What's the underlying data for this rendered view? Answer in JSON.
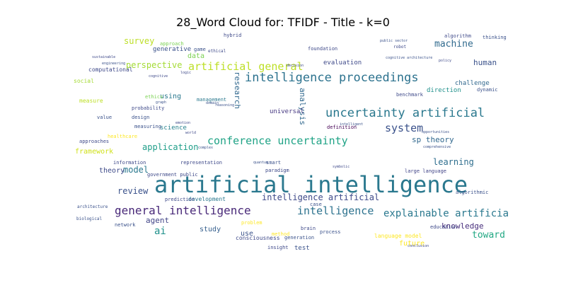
{
  "chart_data": {
    "type": "wordcloud",
    "title": "28_Word Cloud for: TFIDF - Title - k=0",
    "background": "#ffffff",
    "words": [
      {
        "text": "artificial intelligence",
        "color": "#2a788e"
      },
      {
        "text": "intelligence proceedings",
        "color": "#2c728e"
      },
      {
        "text": "uncertainty artificial",
        "color": "#2a788e"
      },
      {
        "text": "conference uncertainty",
        "color": "#20a386"
      },
      {
        "text": "general intelligence",
        "color": "#482878"
      },
      {
        "text": "artificial general",
        "color": "#bddf26"
      },
      {
        "text": "intelligence",
        "color": "#2c728e"
      },
      {
        "text": "explainable artificial",
        "color": "#2a788e"
      },
      {
        "text": "system",
        "color": "#3b528b"
      },
      {
        "text": "intelligence artificial",
        "color": "#3e4989"
      },
      {
        "text": "machine",
        "color": "#306a8e"
      },
      {
        "text": "application",
        "color": "#1f9e89"
      },
      {
        "text": "perspective",
        "color": "#a5db36"
      },
      {
        "text": "survey",
        "color": "#bddf26"
      },
      {
        "text": "research",
        "color": "#31688e"
      },
      {
        "text": "learning",
        "color": "#2e6e8e"
      },
      {
        "text": "review",
        "color": "#3b528b"
      },
      {
        "text": "ai",
        "color": "#21918c"
      },
      {
        "text": "toward",
        "color": "#22a884"
      },
      {
        "text": "knowledge",
        "color": "#472d7b"
      },
      {
        "text": "human",
        "color": "#3b528b"
      },
      {
        "text": "sp theory",
        "color": "#31688e"
      },
      {
        "text": "model",
        "color": "#2a788e"
      },
      {
        "text": "agent",
        "color": "#414487"
      },
      {
        "text": "framework",
        "color": "#d0e11c"
      },
      {
        "text": "analysis",
        "color": "#31688e"
      },
      {
        "text": "theory",
        "color": "#3e4a89"
      },
      {
        "text": "study",
        "color": "#355f8d"
      },
      {
        "text": "use",
        "color": "#3b528b"
      },
      {
        "text": "using",
        "color": "#2a788e"
      },
      {
        "text": "data",
        "color": "#7ad151"
      },
      {
        "text": "generative",
        "color": "#3b528b"
      },
      {
        "text": "science",
        "color": "#26828e"
      },
      {
        "text": "evaluation",
        "color": "#3e4989"
      },
      {
        "text": "computational",
        "color": "#3e4989"
      },
      {
        "text": "universal",
        "color": "#453781"
      },
      {
        "text": "future",
        "color": "#fde725"
      },
      {
        "text": "test",
        "color": "#3b528b"
      },
      {
        "text": "direction",
        "color": "#21918c"
      },
      {
        "text": "challenge",
        "color": "#31688e"
      },
      {
        "text": "development",
        "color": "#2a788e"
      },
      {
        "text": "consciousness",
        "color": "#3e4989"
      },
      {
        "text": "language model",
        "color": "#fde725"
      },
      {
        "text": "large language",
        "color": "#414487"
      },
      {
        "text": "game",
        "color": "#3b528b"
      },
      {
        "text": "foundation",
        "color": "#3e4989"
      },
      {
        "text": "approach",
        "color": "#7ad151"
      },
      {
        "text": "information",
        "color": "#3e4989"
      },
      {
        "text": "measuring",
        "color": "#3b528b"
      },
      {
        "text": "definition",
        "color": "#440154"
      },
      {
        "text": "algorithm",
        "color": "#3e4989"
      },
      {
        "text": "thinking",
        "color": "#3b528b"
      },
      {
        "text": "hybrid",
        "color": "#3e4989"
      },
      {
        "text": "management",
        "color": "#2a788e"
      },
      {
        "text": "ethics",
        "color": "#7ad151"
      },
      {
        "text": "value",
        "color": "#3b528b"
      },
      {
        "text": "design",
        "color": "#3b528b"
      },
      {
        "text": "probability",
        "color": "#3e4989"
      },
      {
        "text": "healthcare",
        "color": "#fde725"
      },
      {
        "text": "approaches",
        "color": "#3e4989"
      },
      {
        "text": "social",
        "color": "#a5db36"
      },
      {
        "text": "measure",
        "color": "#bddf26"
      },
      {
        "text": "benchmark",
        "color": "#3e4989"
      },
      {
        "text": "dynamic",
        "color": "#3b528b"
      },
      {
        "text": "education",
        "color": "#3e4989"
      },
      {
        "text": "algorithmic",
        "color": "#3b528b"
      },
      {
        "text": "network",
        "color": "#3b528b"
      },
      {
        "text": "method",
        "color": "#fde725"
      },
      {
        "text": "brain",
        "color": "#3e4989"
      },
      {
        "text": "process",
        "color": "#3b528b"
      },
      {
        "text": "problem",
        "color": "#fde725"
      },
      {
        "text": "representation",
        "color": "#3e4989"
      },
      {
        "text": "prediction",
        "color": "#3e4989"
      },
      {
        "text": "case",
        "color": "#3b528b"
      },
      {
        "text": "paradigm",
        "color": "#3e4989"
      },
      {
        "text": "smart",
        "color": "#3b528b"
      },
      {
        "text": "generation",
        "color": "#3b528b"
      },
      {
        "text": "insight",
        "color": "#3e4989"
      },
      {
        "text": "architecture",
        "color": "#3b528b"
      },
      {
        "text": "government public",
        "color": "#3e4989"
      },
      {
        "text": "biological",
        "color": "#3b528b"
      },
      {
        "text": "ethical",
        "color": "#3e4989"
      },
      {
        "text": "comprehensive",
        "color": "#3b528b"
      },
      {
        "text": "logic",
        "color": "#3e4989"
      },
      {
        "text": "graph",
        "color": "#3b528b"
      },
      {
        "text": "cognitive",
        "color": "#3e4989"
      },
      {
        "text": "quantum",
        "color": "#3b528b"
      },
      {
        "text": "robot",
        "color": "#3e4989"
      },
      {
        "text": "public sector",
        "color": "#3b528b"
      },
      {
        "text": "sustainable",
        "color": "#3e4989"
      },
      {
        "text": "engineering",
        "color": "#3b528b"
      },
      {
        "text": "decision",
        "color": "#3e4989"
      },
      {
        "text": "cognitive architecture",
        "color": "#3b528b"
      },
      {
        "text": "world",
        "color": "#3e4989"
      },
      {
        "text": "domain",
        "color": "#3b528b"
      },
      {
        "text": "conclusion",
        "color": "#3e4989"
      },
      {
        "text": "intelligent",
        "color": "#3b528b"
      },
      {
        "text": "emotion",
        "color": "#3e4989"
      },
      {
        "text": "opportunities",
        "color": "#3b528b"
      },
      {
        "text": "symbolic",
        "color": "#3e4989"
      },
      {
        "text": "reasoning",
        "color": "#3b528b"
      },
      {
        "text": "policy",
        "color": "#3e4989"
      },
      {
        "text": "complex",
        "color": "#3b528b"
      }
    ]
  }
}
